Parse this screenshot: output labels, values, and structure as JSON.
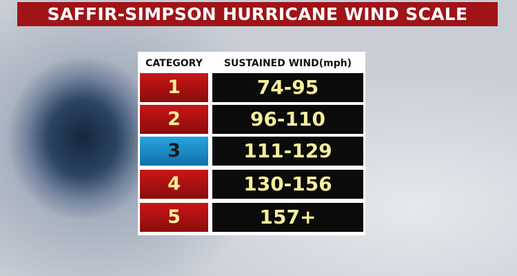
{
  "title": "SAFFIR-SIMPSON HURRICANE WIND SCALE",
  "table": {
    "headers": {
      "category": "CATEGORY",
      "wind": "SUSTAINED WIND(mph)"
    },
    "rows": [
      {
        "category": "1",
        "wind": "74-95",
        "color": "#b81414"
      },
      {
        "category": "2",
        "wind": "96-110",
        "color": "#b81414"
      },
      {
        "category": "3",
        "wind": "111-129",
        "color": "#1e8cc8"
      },
      {
        "category": "4",
        "wind": "130-156",
        "color": "#b81414"
      },
      {
        "category": "5",
        "wind": "157+",
        "color": "#b81414"
      }
    ]
  },
  "colors": {
    "title_bg": "#a01418",
    "value_text": "#f6ef9a",
    "value_bg": "#0b0b0b"
  }
}
